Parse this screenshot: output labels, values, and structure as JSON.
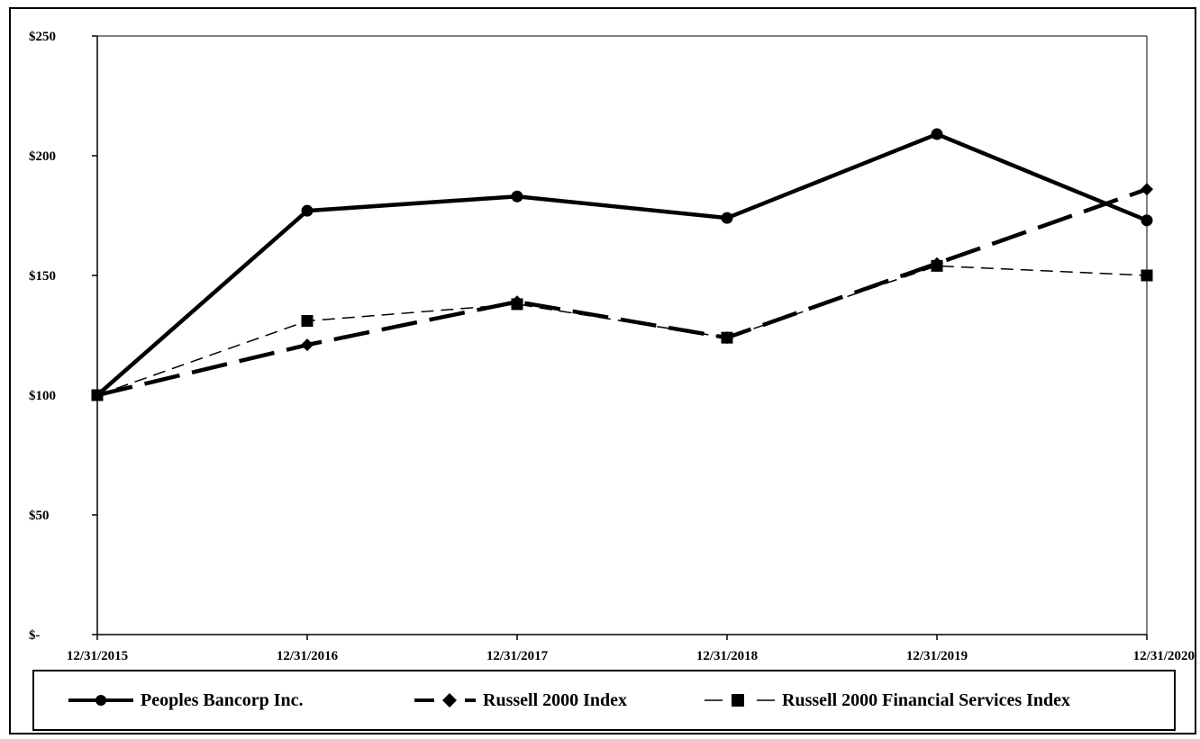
{
  "chart_data": {
    "type": "line",
    "title": "",
    "xlabel": "",
    "ylabel": "",
    "categories": [
      "12/31/2015",
      "12/31/2016",
      "12/31/2017",
      "12/31/2018",
      "12/31/2019",
      "12/31/2020"
    ],
    "y_ticks": [
      0,
      50,
      100,
      150,
      200,
      250
    ],
    "y_tick_labels": [
      "$-",
      "$50",
      "$100",
      "$150",
      "$200",
      "$250"
    ],
    "ylim": [
      0,
      250
    ],
    "grid": false,
    "legend_position": "bottom",
    "series": [
      {
        "name": "Peoples Bancorp Inc.",
        "values": [
          100,
          177,
          183,
          174,
          209,
          173
        ],
        "color": "#000000",
        "line_style": "solid",
        "marker": "circle"
      },
      {
        "name": "Russell 2000 Index",
        "values": [
          100,
          121,
          139,
          124,
          155,
          186
        ],
        "color": "#000000",
        "line_style": "long-dash",
        "marker": "diamond"
      },
      {
        "name": "Russell 2000 Financial Services Index",
        "values": [
          100,
          131,
          138,
          124,
          154,
          150
        ],
        "color": "#000000",
        "line_style": "thin-dash",
        "marker": "square"
      }
    ]
  }
}
